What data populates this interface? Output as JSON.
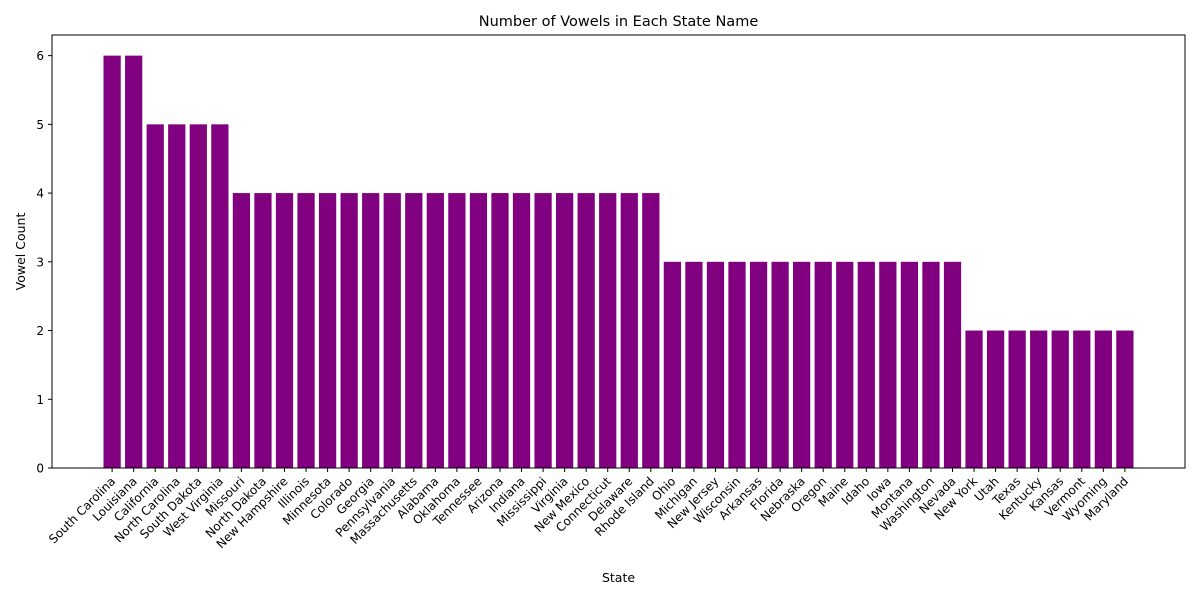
{
  "chart_data": {
    "type": "bar",
    "title": "Number of Vowels in Each State Name",
    "xlabel": "State",
    "ylabel": "Vowel Count",
    "ylim": [
      0,
      6.3
    ],
    "yticks": [
      0,
      1,
      2,
      3,
      4,
      5,
      6
    ],
    "grid": false,
    "bar_color": "#800080",
    "categories": [
      "South Carolina",
      "Louisiana",
      "California",
      "North Carolina",
      "South Dakota",
      "West Virginia",
      "Missouri",
      "North Dakota",
      "New Hampshire",
      "Illinois",
      "Minnesota",
      "Colorado",
      "Georgia",
      "Pennsylvania",
      "Massachusetts",
      "Alabama",
      "Oklahoma",
      "Tennessee",
      "Arizona",
      "Indiana",
      "Mississippi",
      "Virginia",
      "New Mexico",
      "Connecticut",
      "Delaware",
      "Rhode Island",
      "Ohio",
      "Michigan",
      "New Jersey",
      "Wisconsin",
      "Arkansas",
      "Florida",
      "Nebraska",
      "Oregon",
      "Maine",
      "Idaho",
      "Iowa",
      "Montana",
      "Washington",
      "Nevada",
      "New York",
      "Utah",
      "Texas",
      "Kentucky",
      "Kansas",
      "Vermont",
      "Wyoming",
      "Maryland"
    ],
    "values": [
      6,
      6,
      5,
      5,
      5,
      5,
      4,
      4,
      4,
      4,
      4,
      4,
      4,
      4,
      4,
      4,
      4,
      4,
      4,
      4,
      4,
      4,
      4,
      4,
      4,
      4,
      3,
      3,
      3,
      3,
      3,
      3,
      3,
      3,
      3,
      3,
      3,
      3,
      3,
      3,
      2,
      2,
      2,
      2,
      2,
      2,
      2,
      2
    ]
  }
}
